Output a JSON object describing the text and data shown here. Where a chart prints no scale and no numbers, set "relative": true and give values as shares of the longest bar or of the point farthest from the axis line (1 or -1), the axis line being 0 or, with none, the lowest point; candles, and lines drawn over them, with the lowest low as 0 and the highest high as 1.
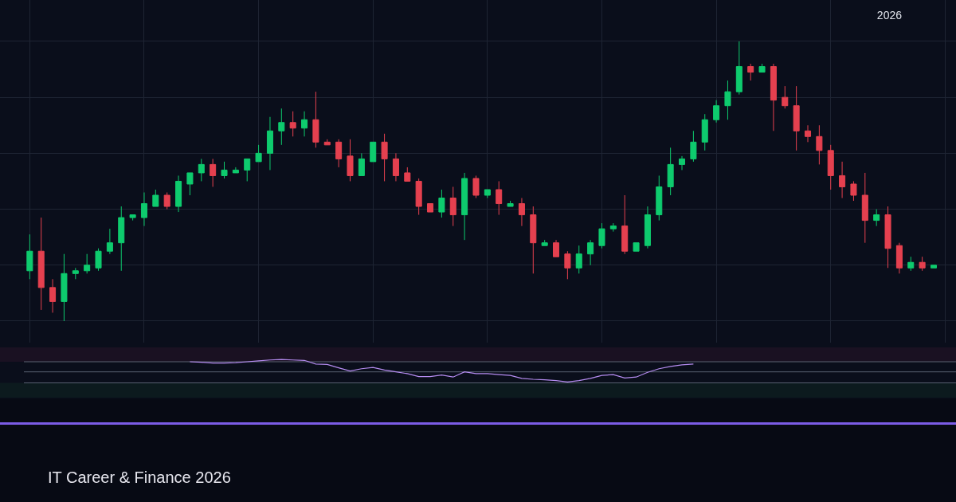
{
  "chart_data": [
    {
      "type": "candlestick",
      "relative": true,
      "grid": true,
      "annotations": [
        "2026",
        "IT Career & Finance 2026"
      ],
      "categories": [
        null,
        null,
        null,
        null,
        null,
        null,
        null,
        null,
        null,
        null,
        null,
        null,
        null,
        null,
        null,
        null,
        null,
        null,
        null,
        null,
        null,
        null,
        null,
        null,
        null,
        null,
        null,
        null,
        null,
        null,
        null,
        null,
        null,
        null,
        null,
        null,
        null,
        null,
        null,
        null,
        null,
        null,
        null,
        null,
        null,
        null,
        null,
        null,
        null,
        null,
        null,
        null,
        null,
        null,
        null,
        null,
        null,
        null,
        null,
        null,
        null,
        null,
        null,
        null,
        null,
        null,
        null,
        null,
        null,
        null,
        null,
        null,
        null,
        null,
        null,
        null,
        null,
        null,
        null,
        null
      ],
      "ohlc": [
        [
          0.18,
          0.31,
          0.15,
          0.25
        ],
        [
          0.25,
          0.37,
          0.04,
          0.12
        ],
        [
          0.12,
          0.15,
          0.03,
          0.07
        ],
        [
          0.07,
          0.24,
          0,
          0.17
        ],
        [
          0.17,
          0.19,
          0.15,
          0.18
        ],
        [
          0.18,
          0.24,
          0.17,
          0.2
        ],
        [
          0.19,
          0.26,
          0.18,
          0.25
        ],
        [
          0.25,
          0.33,
          0.24,
          0.28
        ],
        [
          0.28,
          0.41,
          0.18,
          0.37
        ],
        [
          0.37,
          0.38,
          0.36,
          0.38
        ],
        [
          0.37,
          0.46,
          0.34,
          0.42
        ],
        [
          0.41,
          0.47,
          0.41,
          0.45
        ],
        [
          0.45,
          0.46,
          0.4,
          0.41
        ],
        [
          0.41,
          0.52,
          0.39,
          0.5
        ],
        [
          0.49,
          0.53,
          0.45,
          0.53
        ],
        [
          0.53,
          0.58,
          0.5,
          0.56
        ],
        [
          0.56,
          0.58,
          0.48,
          0.52
        ],
        [
          0.52,
          0.57,
          0.51,
          0.54
        ],
        [
          0.53,
          0.55,
          0.53,
          0.54
        ],
        [
          0.54,
          0.58,
          0.5,
          0.58
        ],
        [
          0.57,
          0.63,
          0.57,
          0.6
        ],
        [
          0.6,
          0.73,
          0.54,
          0.68
        ],
        [
          0.68,
          0.76,
          0.63,
          0.71
        ],
        [
          0.71,
          0.75,
          0.66,
          0.69
        ],
        [
          0.69,
          0.75,
          0.66,
          0.72
        ],
        [
          0.72,
          0.82,
          0.62,
          0.64
        ],
        [
          0.64,
          0.65,
          0.63,
          0.63
        ],
        [
          0.64,
          0.65,
          0.55,
          0.58
        ],
        [
          0.59,
          0.65,
          0.5,
          0.52
        ],
        [
          0.52,
          0.6,
          0.52,
          0.58
        ],
        [
          0.57,
          0.64,
          0.57,
          0.64
        ],
        [
          0.64,
          0.67,
          0.5,
          0.58
        ],
        [
          0.58,
          0.6,
          0.5,
          0.52
        ],
        [
          0.53,
          0.55,
          0.5,
          0.5
        ],
        [
          0.5,
          0.51,
          0.38,
          0.41
        ],
        [
          0.42,
          0.42,
          0.39,
          0.39
        ],
        [
          0.39,
          0.47,
          0.37,
          0.44
        ],
        [
          0.44,
          0.48,
          0.34,
          0.38
        ],
        [
          0.38,
          0.53,
          0.29,
          0.51
        ],
        [
          0.51,
          0.52,
          0.44,
          0.45
        ],
        [
          0.45,
          0.47,
          0.44,
          0.47
        ],
        [
          0.47,
          0.5,
          0.38,
          0.42
        ],
        [
          0.41,
          0.43,
          0.41,
          0.42
        ],
        [
          0.42,
          0.44,
          0.34,
          0.38
        ],
        [
          0.38,
          0.41,
          0.17,
          0.28
        ],
        [
          0.27,
          0.29,
          0.27,
          0.28
        ],
        [
          0.28,
          0.29,
          0.23,
          0.23
        ],
        [
          0.24,
          0.25,
          0.15,
          0.19
        ],
        [
          0.19,
          0.27,
          0.17,
          0.24
        ],
        [
          0.24,
          0.29,
          0.2,
          0.28
        ],
        [
          0.27,
          0.35,
          0.26,
          0.33
        ],
        [
          0.33,
          0.35,
          0.32,
          0.34
        ],
        [
          0.34,
          0.45,
          0.24,
          0.25
        ],
        [
          0.25,
          0.28,
          0.25,
          0.28
        ],
        [
          0.27,
          0.41,
          0.26,
          0.38
        ],
        [
          0.38,
          0.52,
          0.36,
          0.48
        ],
        [
          0.48,
          0.62,
          0.45,
          0.56
        ],
        [
          0.56,
          0.59,
          0.54,
          0.58
        ],
        [
          0.58,
          0.68,
          0.57,
          0.64
        ],
        [
          0.64,
          0.74,
          0.61,
          0.72
        ],
        [
          0.72,
          0.79,
          0.71,
          0.77
        ],
        [
          0.77,
          0.86,
          0.72,
          0.82
        ],
        [
          0.82,
          1,
          0.81,
          0.91
        ],
        [
          0.91,
          0.92,
          0.86,
          0.89
        ],
        [
          0.89,
          0.92,
          0.89,
          0.91
        ],
        [
          0.91,
          0.92,
          0.68,
          0.79
        ],
        [
          0.8,
          0.84,
          0.76,
          0.77
        ],
        [
          0.77,
          0.84,
          0.61,
          0.68
        ],
        [
          0.68,
          0.7,
          0.64,
          0.66
        ],
        [
          0.66,
          0.7,
          0.56,
          0.61
        ],
        [
          0.61,
          0.63,
          0.47,
          0.52
        ],
        [
          0.52,
          0.57,
          0.44,
          0.48
        ],
        [
          0.49,
          0.5,
          0.43,
          0.45
        ],
        [
          0.45,
          0.53,
          0.28,
          0.36
        ],
        [
          0.36,
          0.4,
          0.34,
          0.38
        ],
        [
          0.38,
          0.41,
          0.19,
          0.26
        ],
        [
          0.27,
          0.28,
          0.17,
          0.19
        ],
        [
          0.19,
          0.23,
          0.18,
          0.21
        ],
        [
          0.21,
          0.23,
          0.18,
          0.19
        ],
        [
          0.19,
          0.2,
          0.19,
          0.2
        ]
      ],
      "colors": [
        "#0ecb6e",
        "#e5404f",
        "#e5404f",
        "#0ecb6e",
        "#0ecb6e",
        "#0ecb6e",
        "#0ecb6e",
        "#0ecb6e",
        "#0ecb6e",
        "#0ecb6e",
        "#0ecb6e",
        "#0ecb6e",
        "#e5404f",
        "#0ecb6e",
        "#0ecb6e",
        "#0ecb6e",
        "#e5404f",
        "#0ecb6e",
        "#0ecb6e",
        "#0ecb6e",
        "#0ecb6e",
        "#0ecb6e",
        "#0ecb6e",
        "#e5404f",
        "#0ecb6e",
        "#e5404f",
        "#e5404f",
        "#e5404f",
        "#e5404f",
        "#0ecb6e",
        "#0ecb6e",
        "#e5404f",
        "#e5404f",
        "#e5404f",
        "#e5404f",
        "#e5404f",
        "#0ecb6e",
        "#e5404f",
        "#0ecb6e",
        "#e5404f",
        "#0ecb6e",
        "#e5404f",
        "#0ecb6e",
        "#e5404f",
        "#e5404f",
        "#0ecb6e",
        "#e5404f",
        "#e5404f",
        "#0ecb6e",
        "#0ecb6e",
        "#0ecb6e",
        "#0ecb6e",
        "#e5404f",
        "#0ecb6e",
        "#0ecb6e",
        "#0ecb6e",
        "#0ecb6e",
        "#0ecb6e",
        "#0ecb6e",
        "#0ecb6e",
        "#0ecb6e",
        "#0ecb6e",
        "#0ecb6e",
        "#e5404f",
        "#0ecb6e",
        "#e5404f",
        "#e5404f",
        "#e5404f",
        "#e5404f",
        "#e5404f",
        "#e5404f",
        "#e5404f",
        "#e5404f",
        "#e5404f",
        "#0ecb6e",
        "#e5404f",
        "#e5404f",
        "#0ecb6e",
        "#e5404f",
        "#0ecb6e"
      ]
    },
    {
      "type": "line",
      "relative": true,
      "categories": [
        null,
        null,
        null,
        null,
        null,
        null,
        null,
        null,
        null,
        null,
        null,
        null,
        null,
        null,
        null,
        null,
        null,
        null,
        null,
        null,
        null,
        null,
        null,
        null,
        null,
        null,
        null,
        null,
        null,
        null,
        null,
        null,
        null,
        null,
        null,
        null,
        null,
        null,
        null,
        null,
        null,
        null,
        null,
        null,
        null,
        null,
        null,
        null,
        null,
        null,
        null,
        null,
        null,
        null,
        null,
        null,
        null,
        null,
        null,
        null,
        null,
        null,
        null,
        null,
        null,
        null,
        null,
        null,
        null,
        null,
        null,
        null,
        null,
        null,
        null,
        null,
        null,
        null,
        null,
        null
      ],
      "series": [
        {
          "color": "#b58cf0",
          "values": [
            null,
            null,
            null,
            null,
            null,
            null,
            null,
            null,
            null,
            null,
            null,
            null,
            null,
            null,
            0.9,
            0.88,
            0.84,
            0.84,
            0.86,
            0.9,
            0.94,
            0.98,
            1,
            0.98,
            0.96,
            0.8,
            0.78,
            0.63,
            0.49,
            0.59,
            0.65,
            0.53,
            0.45,
            0.37,
            0.24,
            0.24,
            0.31,
            0.22,
            0.45,
            0.37,
            0.37,
            0.33,
            0.29,
            0.16,
            0.12,
            0.1,
            0.06,
            0,
            0.06,
            0.16,
            0.29,
            0.33,
            0.18,
            0.22,
            0.43,
            0.59,
            0.69,
            0.76,
            0.8,
            null,
            null,
            null,
            null,
            null,
            null,
            null,
            null,
            null,
            null,
            null,
            null,
            null,
            null,
            null,
            null,
            null,
            null,
            null,
            null,
            null
          ]
        }
      ],
      "ref_lines": [
        {
          "axis": "y",
          "value": 0.9,
          "color": "#5a6272"
        },
        {
          "axis": "y",
          "value": 0.45,
          "color": "#5a6272"
        },
        {
          "axis": "y",
          "value": -0.04,
          "color": "#5a6272"
        }
      ],
      "bands": [
        {
          "axis": "y",
          "from": 0.9,
          "to": 1.54,
          "color": "#1a1122"
        },
        {
          "axis": "y",
          "from": -0.04,
          "to": -0.7,
          "color": "#0c1a1e"
        }
      ]
    }
  ]
}
